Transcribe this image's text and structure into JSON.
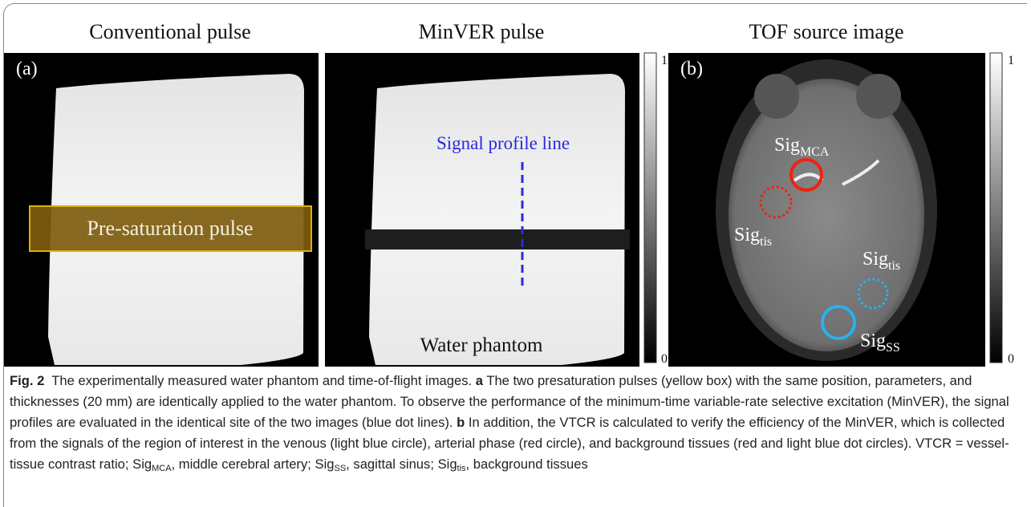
{
  "figure": {
    "panels": [
      {
        "title": "Conventional pulse"
      },
      {
        "title": "MinVER pulse"
      },
      {
        "title": "TOF source image"
      }
    ],
    "panel_labels": [
      "(a)",
      "(b)"
    ],
    "annotations": {
      "presaturation": "Pre-saturation pulse",
      "profile_line": "Signal profile line",
      "phantom": "Water phantom"
    },
    "colorbars": [
      {
        "max": 1,
        "min": 0
      },
      {
        "max": 1,
        "min": 0
      }
    ],
    "roi_labels": [
      {
        "main": "Sig",
        "sub": "MCA"
      },
      {
        "main": "Sig",
        "sub": "tis"
      },
      {
        "main": "Sig",
        "sub": "tis"
      },
      {
        "main": "Sig",
        "sub": "SS"
      }
    ]
  },
  "caption": {
    "label": "Fig. 2",
    "intro": "The experimentally measured water phantom and time-of-flight images.",
    "a_label": "a",
    "a_text": "The two presaturation pulses (yellow box) with the same position, parameters, and thicknesses (20 mm) are identically applied to the water phantom. To observe the performance of the minimum-time variable-rate selective excitation (MinVER), the signal profiles are evaluated in the identical site of the two images (blue dot lines).",
    "b_label": "b",
    "b_text": "In addition, the VTCR is calculated to verify the efficiency of the MinVER, which is collected from the signals of the region of interest in the venous (light blue circle), arterial phase (red circle), and background tissues (red and light blue dot circles).",
    "abbrev_text": "VTCR = vessel-tissue contrast ratio;",
    "abbreviations": [
      {
        "main": "Sig",
        "sub": "MCA",
        "def": ", middle cerebral artery;"
      },
      {
        "main": "Sig",
        "sub": "SS",
        "def": ", sagittal sinus;"
      },
      {
        "main": "Sig",
        "sub": "tis",
        "def": ", background tissues"
      }
    ]
  }
}
